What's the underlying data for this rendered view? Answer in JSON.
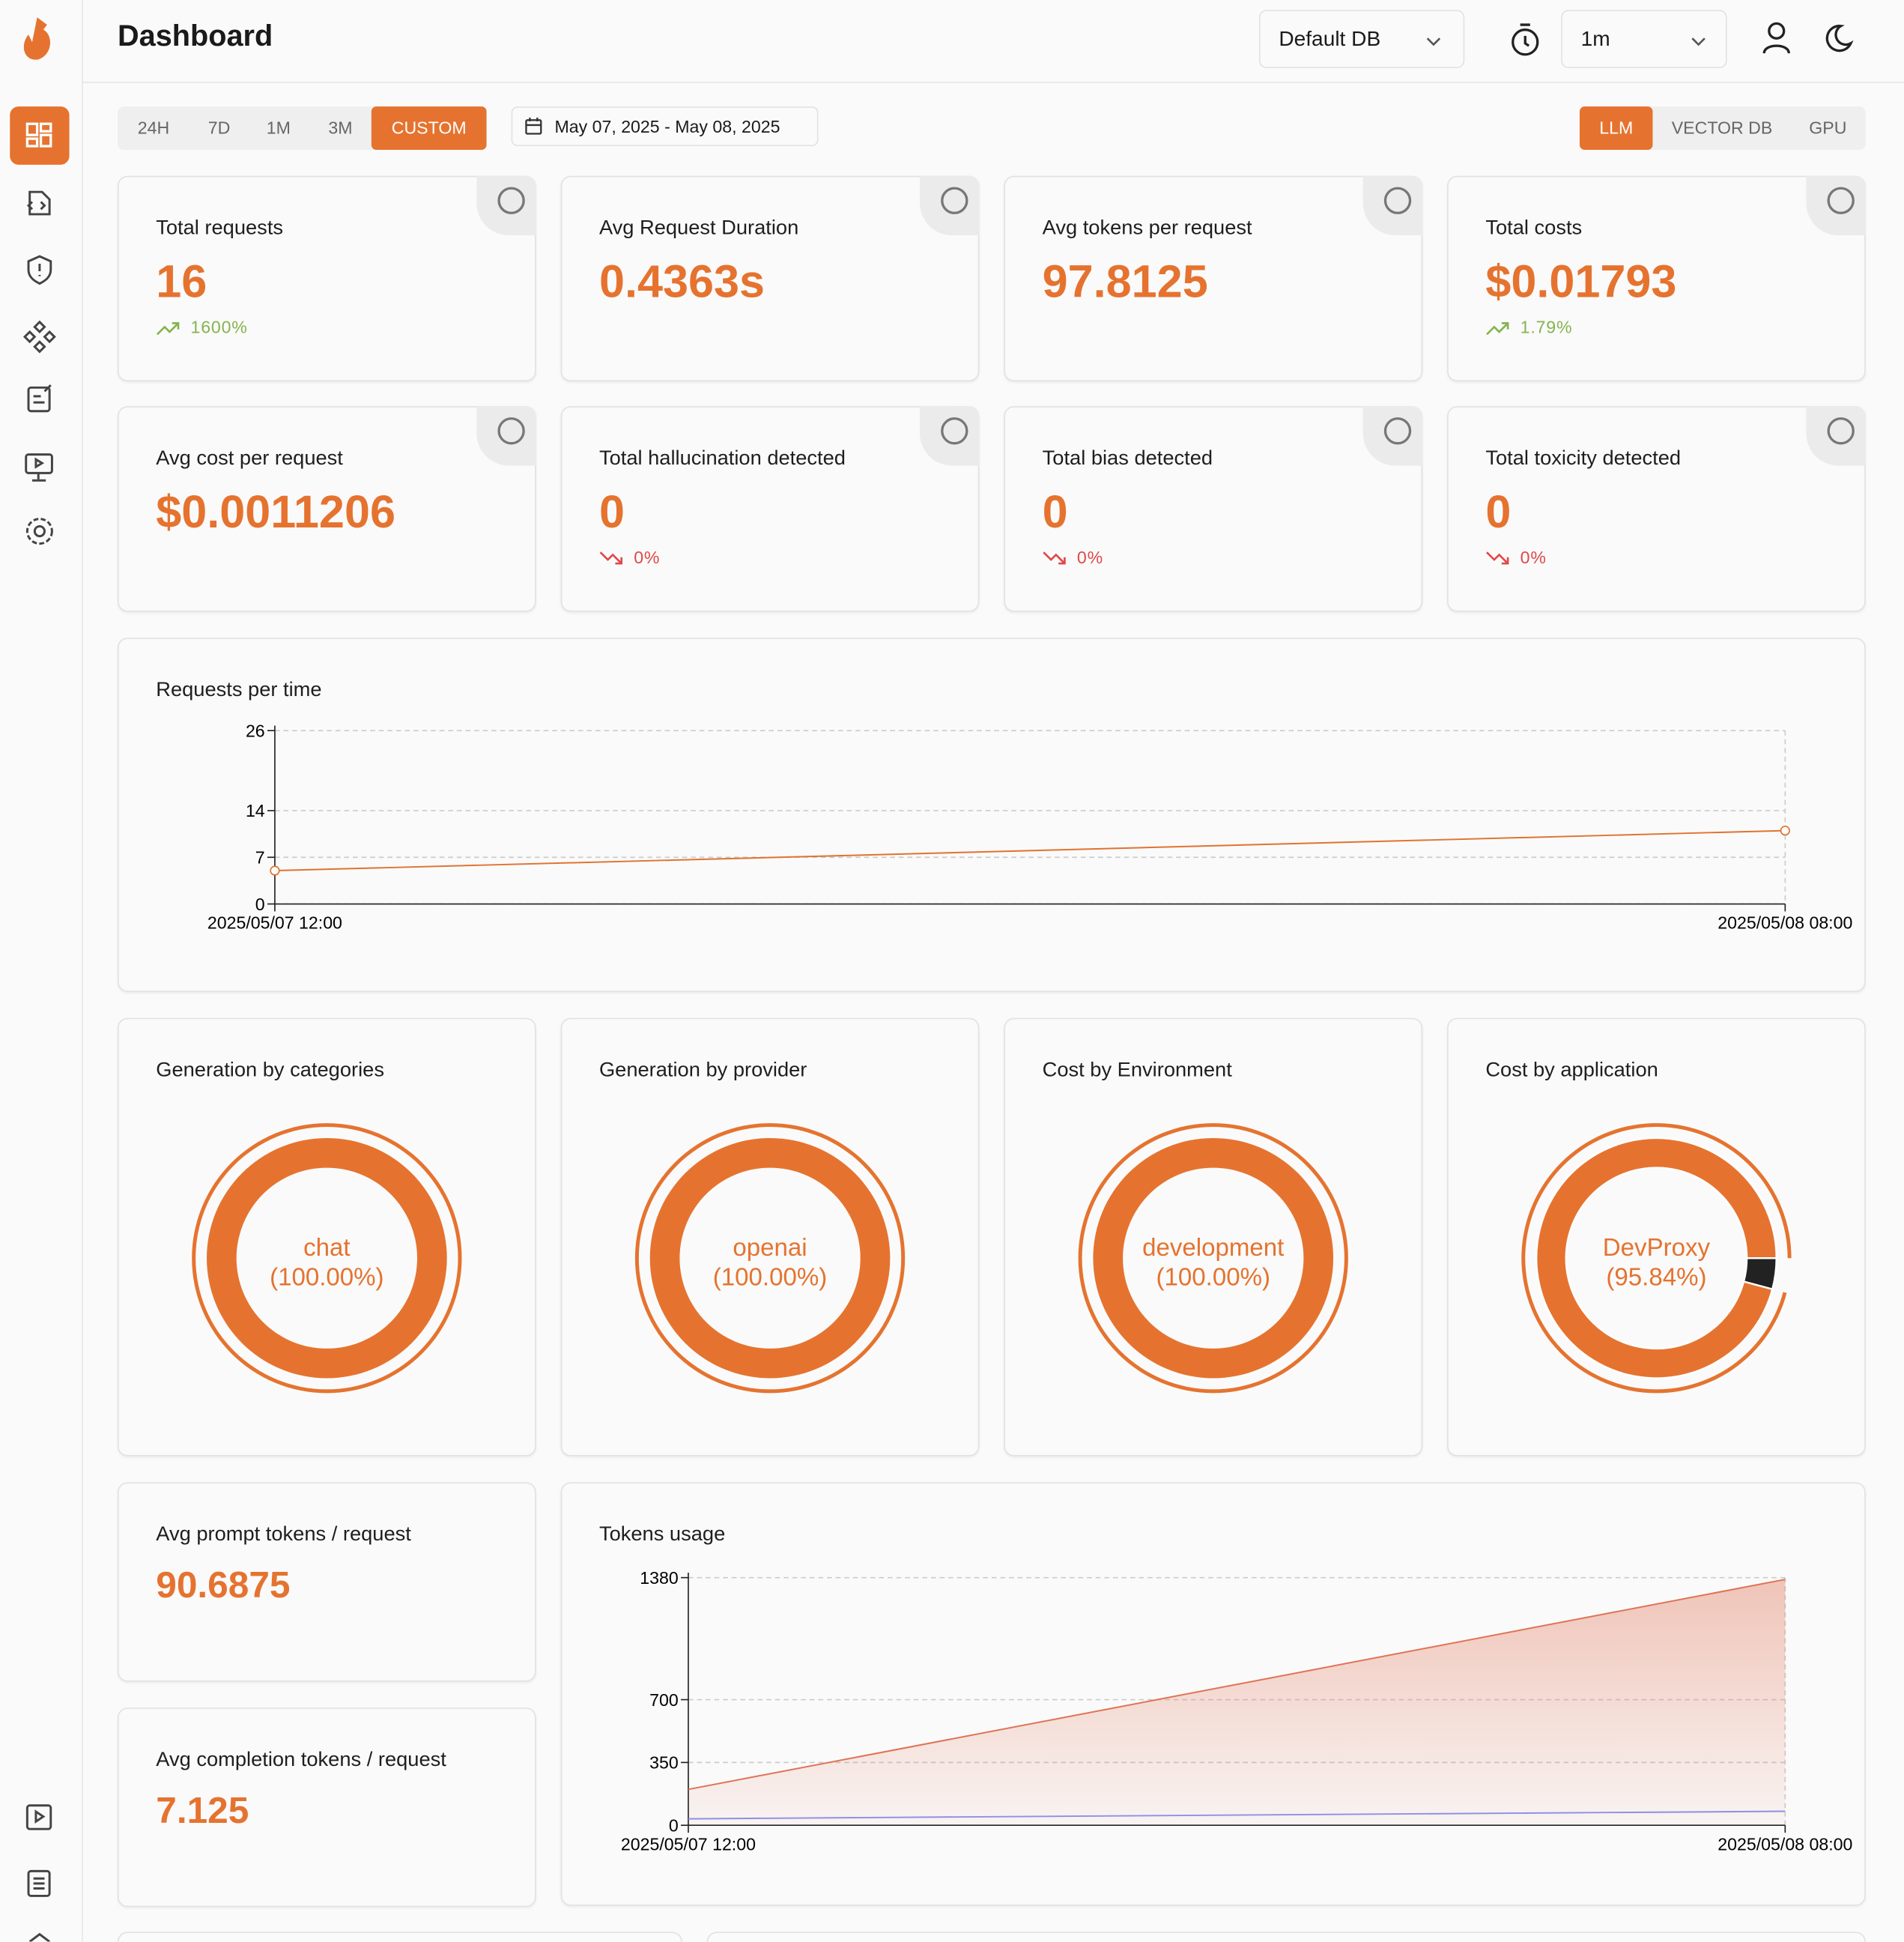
{
  "header": {
    "title": "Dashboard",
    "database": "Default DB",
    "refresh": "1m"
  },
  "ranges": [
    "24H",
    "7D",
    "1M",
    "3M",
    "CUSTOM"
  ],
  "date_range": "May 07, 2025 - May 08, 2025",
  "tabs": [
    "LLM",
    "VECTOR DB",
    "GPU"
  ],
  "stats": [
    {
      "label": "Total requests",
      "value": "16",
      "change": "1600%",
      "trend": "up"
    },
    {
      "label": "Avg Request Duration",
      "value": "0.4363s"
    },
    {
      "label": "Avg tokens per request",
      "value": "97.8125"
    },
    {
      "label": "Total costs",
      "value": "$0.01793",
      "change": "1.79%",
      "trend": "up"
    },
    {
      "label": "Avg cost per request",
      "value": "$0.0011206"
    },
    {
      "label": "Total hallucination detected",
      "value": "0",
      "change": "0%",
      "trend": "down"
    },
    {
      "label": "Total bias detected",
      "value": "0",
      "change": "0%",
      "trend": "down"
    },
    {
      "label": "Total toxicity detected",
      "value": "0",
      "change": "0%",
      "trend": "down"
    }
  ],
  "requests_chart": {
    "type": "line",
    "title": "Requests per time",
    "x": [
      "2025/05/07 12:00",
      "2025/05/08 08:00"
    ],
    "values": [
      5,
      11
    ],
    "color": "#e07330",
    "ylim": [
      0,
      26
    ],
    "yticks": [
      0,
      7,
      14,
      26
    ],
    "grid": true
  },
  "donuts": [
    {
      "type": "pie",
      "title": "Generation by categories",
      "categories": [
        "chat"
      ],
      "values": [
        100
      ],
      "value_labels": [
        "(100.00%)"
      ],
      "colors": [
        "#e5732f"
      ]
    },
    {
      "type": "pie",
      "title": "Generation by provider",
      "categories": [
        "openai"
      ],
      "values": [
        100
      ],
      "value_labels": [
        "(100.00%)"
      ],
      "colors": [
        "#e5732f"
      ]
    },
    {
      "type": "pie",
      "title": "Cost by Environment",
      "categories": [
        "development"
      ],
      "values": [
        100
      ],
      "value_labels": [
        "(100.00%)"
      ],
      "colors": [
        "#e5732f"
      ]
    },
    {
      "type": "pie",
      "title": "Cost by application",
      "categories": [
        "DevProxy",
        null
      ],
      "values": [
        95.84,
        4.16
      ],
      "value_labels": [
        "(95.84%)",
        null
      ],
      "colors": [
        "#e5732f",
        "#222222"
      ]
    }
  ],
  "token_stats": [
    {
      "label": "Avg prompt tokens / request",
      "value": "90.6875"
    },
    {
      "label": "Avg completion tokens / request",
      "value": "7.125"
    }
  ],
  "tokens_chart": {
    "type": "area",
    "title": "Tokens usage",
    "x": [
      "2025/05/07 12:00",
      "2025/05/08 08:00"
    ],
    "series": [
      {
        "color": "#e07355",
        "values": [
          200,
          1370
        ]
      },
      {
        "color": "#8f8fe6",
        "values": [
          36,
          78
        ]
      }
    ],
    "ylim": [
      0,
      1380
    ],
    "yticks": [
      0,
      350,
      700,
      1380
    ],
    "grid": true
  }
}
